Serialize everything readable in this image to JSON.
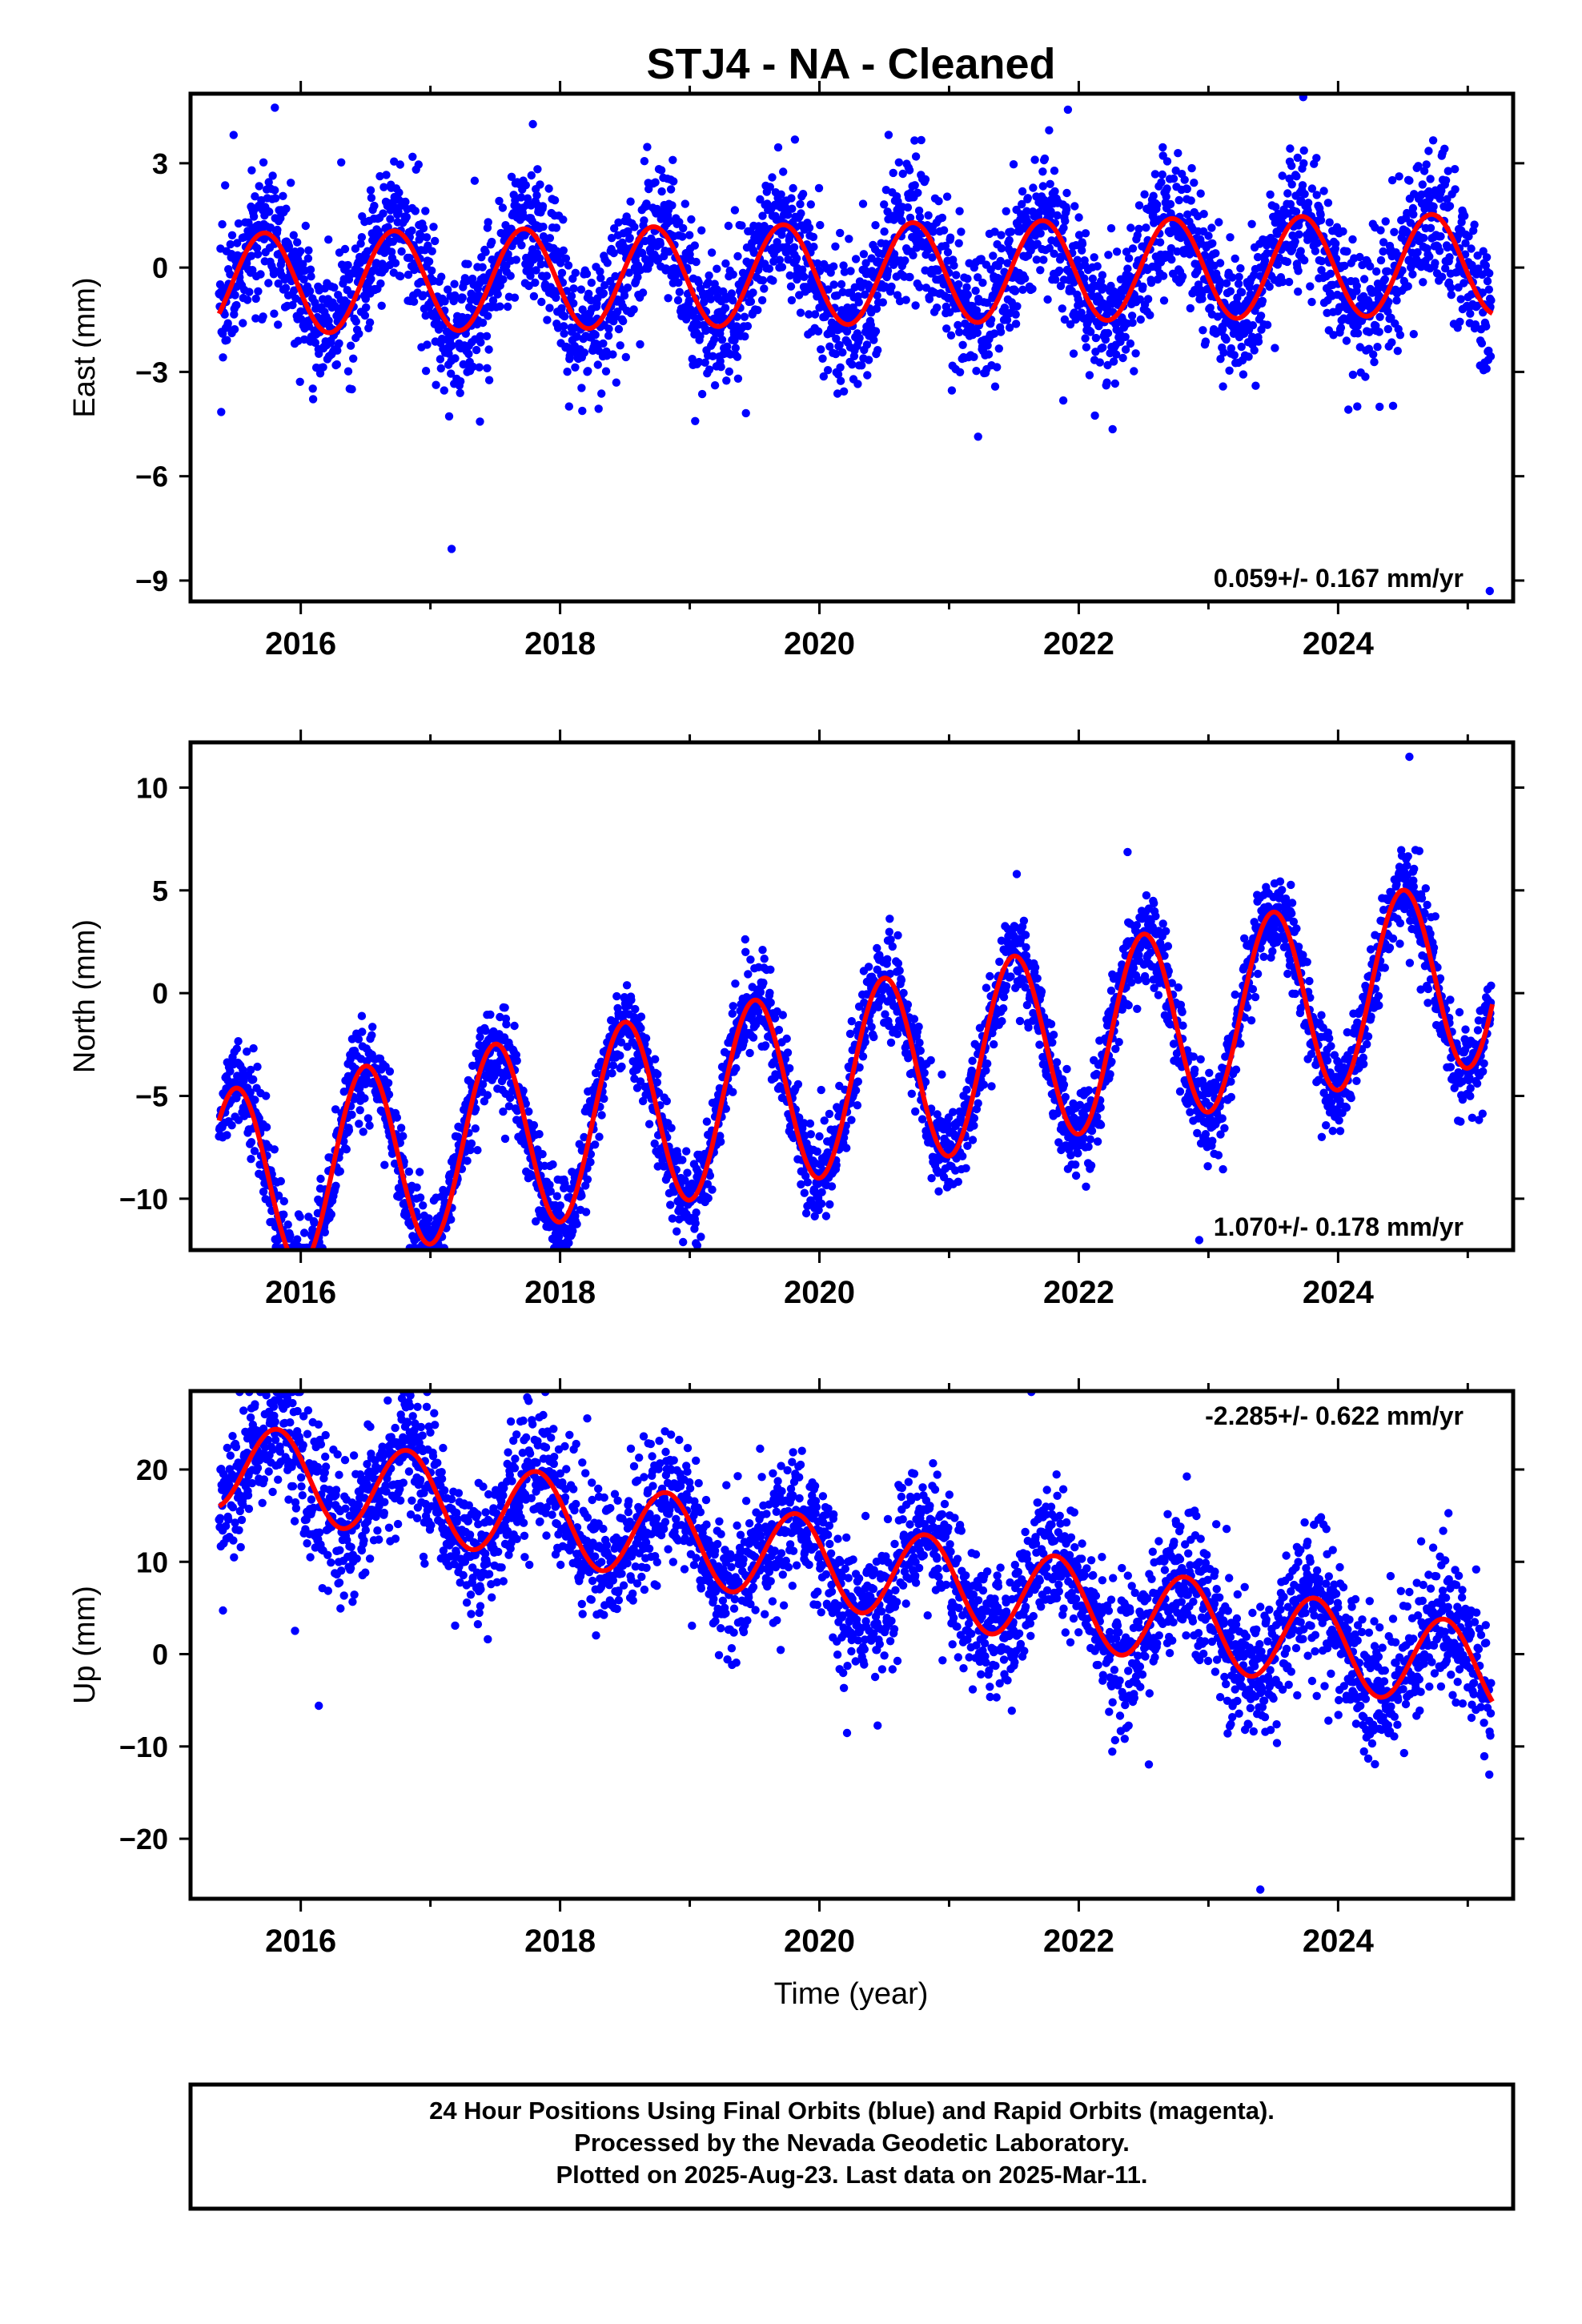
{
  "title": "STJ4  - NA - Cleaned",
  "xlabel": "Time (year)",
  "footer": {
    "line1": "24 Hour Positions Using Final Orbits (blue) and Rapid Orbits (magenta).",
    "line2": "Processed by the Nevada Geodetic Laboratory.",
    "line3": "Plotted on 2025-Aug-23. Last data on 2025-Mar-11."
  },
  "colors": {
    "data": "#0000ff",
    "model": "#ff0000",
    "frame": "#000000"
  },
  "chart_data": [
    {
      "type": "scatter",
      "component": "east",
      "ylabel": "East (mm)",
      "xlim": [
        2015.15,
        2025.35
      ],
      "ylim": [
        -9.6,
        5.0
      ],
      "xticks": [
        2016,
        2018,
        2020,
        2022,
        2024
      ],
      "yticks": [
        3,
        0,
        -3,
        -6,
        -9
      ],
      "yticklabels": [
        "3",
        "0",
        "−3",
        "−6",
        "−9"
      ],
      "rate_text": "0.059+/- 0.167 mm/yr",
      "rate_position": "bottom-right",
      "data_start": 2015.37,
      "data_end": 2025.19,
      "model": {
        "offset": -0.2,
        "trend": 0.059,
        "amplitude": 1.45,
        "peak": 0.72
      },
      "noise": 0.95,
      "extremes": [
        4.6,
        -9.3
      ],
      "series": [
        {
          "name": "24 Hour Positions Using Final Orbits (blue)",
          "style": "points"
        },
        {
          "name": "model fit",
          "style": "line"
        }
      ]
    },
    {
      "type": "scatter",
      "component": "north",
      "ylabel": "North (mm)",
      "xlim": [
        2015.15,
        2025.35
      ],
      "ylim": [
        -12.5,
        12.2
      ],
      "xticks": [
        2016,
        2018,
        2020,
        2022,
        2024
      ],
      "yticks": [
        10,
        5,
        0,
        -5,
        -10
      ],
      "yticklabels": [
        "10",
        "5",
        "0",
        "−5",
        "−10"
      ],
      "rate_text": "1.070+/- 0.178 mm/yr",
      "rate_position": "bottom-right",
      "data_start": 2015.37,
      "data_end": 2025.19,
      "model": {
        "offset": -4.4,
        "trend": 1.07,
        "amplitude": 4.6,
        "peak": 0.5
      },
      "noise": 1.1,
      "extremes": [
        11.5,
        -12.2
      ],
      "series": [
        {
          "name": "24 Hour Positions Using Final Orbits (blue)",
          "style": "points"
        },
        {
          "name": "model fit",
          "style": "line"
        }
      ]
    },
    {
      "type": "scatter",
      "component": "up",
      "ylabel": "Up (mm)",
      "xlim": [
        2015.15,
        2025.35
      ],
      "ylim": [
        -26.5,
        28.5
      ],
      "xticks": [
        2016,
        2018,
        2020,
        2022,
        2024
      ],
      "yticks": [
        20,
        10,
        0,
        -10,
        -20
      ],
      "yticklabels": [
        "20",
        "10",
        "0",
        "−10",
        "−20"
      ],
      "rate_text": "-2.285+/- 0.622 mm/yr",
      "rate_position": "top-right",
      "data_start": 2015.37,
      "data_end": 2025.19,
      "model": {
        "offset": 10.0,
        "trend": -2.285,
        "amplitude": 4.8,
        "peak": 0.82
      },
      "noise": 3.6,
      "extremes": [
        27.5,
        -25.5
      ],
      "series": [
        {
          "name": "24 Hour Positions Using Final Orbits (blue)",
          "style": "points"
        },
        {
          "name": "model fit",
          "style": "line"
        }
      ]
    }
  ]
}
